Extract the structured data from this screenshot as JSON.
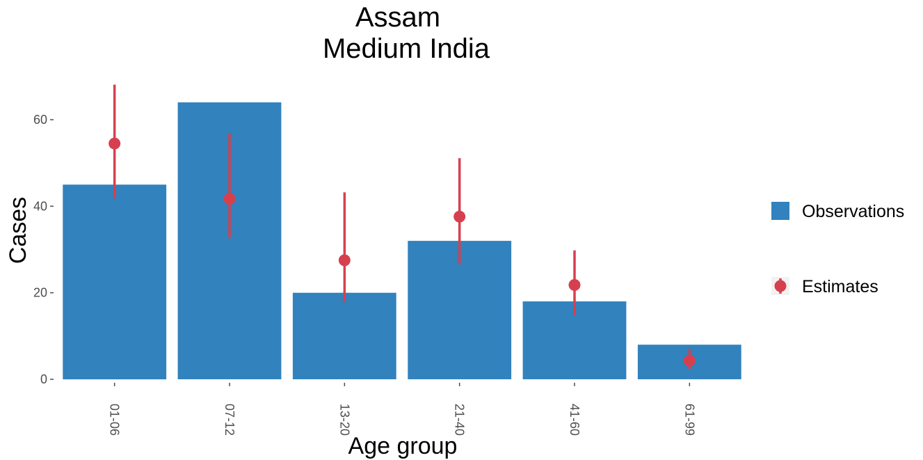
{
  "chart_data": {
    "type": "bar",
    "title": [
      "Assam",
      "Medium India"
    ],
    "xlabel": "Age group",
    "ylabel": "Cases",
    "categories": [
      "01-06",
      "07-12",
      "13-20",
      "21-40",
      "41-60",
      "61-99"
    ],
    "ylim": [
      0,
      70
    ],
    "yticks": [
      0,
      20,
      40,
      60
    ],
    "grid": false,
    "legend_position": "right",
    "series": [
      {
        "name": "Observations",
        "kind": "bar",
        "color": "#3182bd",
        "values": [
          45,
          64,
          20,
          32,
          18,
          8
        ]
      },
      {
        "name": "Estimates",
        "kind": "point-errorbar",
        "color": "#d6404e",
        "values": [
          54.5,
          41.7,
          27.5,
          37.6,
          21.8,
          4.3
        ],
        "lower": [
          41.8,
          32.6,
          17.8,
          26.6,
          14.8,
          2.4
        ],
        "upper": [
          68.1,
          56.8,
          43.2,
          51.1,
          29.8,
          7.0
        ]
      }
    ]
  }
}
